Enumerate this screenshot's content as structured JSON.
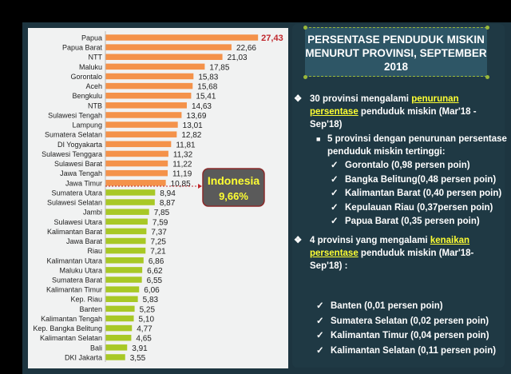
{
  "chart_data": {
    "type": "bar",
    "orientation": "horizontal",
    "categories": [
      "Papua",
      "Papua Barat",
      "NTT",
      "Maluku",
      "Gorontalo",
      "Aceh",
      "Bengkulu",
      "NTB",
      "Sulawesi Tengah",
      "Lampung",
      "Sumatera Selatan",
      "DI Yogyakarta",
      "Sulawesi Tenggara",
      "Sulawesi Barat",
      "Jawa Tengah",
      "Jawa Timur",
      "Sumatera Utara",
      "Sulawesi Selatan",
      "Jambi",
      "Sulawesi Utara",
      "Kalimantan Barat",
      "Jawa Barat",
      "Riau",
      "Kalimantan Utara",
      "Maluku Utara",
      "Sumatera Barat",
      "Kalimantan Timur",
      "Kep. Riau",
      "Banten",
      "Kalimantan Tengah",
      "Kep. Bangka Belitung",
      "Kalimantan Selatan",
      "Bali",
      "DKI Jakarta"
    ],
    "values": [
      27.43,
      22.66,
      21.03,
      17.85,
      15.83,
      15.68,
      15.41,
      14.63,
      13.69,
      13.01,
      12.82,
      11.81,
      11.32,
      11.22,
      11.19,
      10.85,
      8.94,
      8.87,
      7.85,
      7.59,
      7.37,
      7.25,
      7.21,
      6.86,
      6.62,
      6.55,
      6.06,
      5.83,
      5.25,
      5.1,
      4.77,
      4.65,
      3.91,
      3.55
    ],
    "value_labels": [
      "27,43",
      "22,66",
      "21,03",
      "17,85",
      "15,83",
      "15,68",
      "15,41",
      "14,63",
      "13,69",
      "13,01",
      "12,82",
      "11,81",
      "11,32",
      "11,22",
      "11,19",
      "10,85",
      "8,94",
      "8,87",
      "7,85",
      "7,59",
      "7,37",
      "7,25",
      "7,21",
      "6,86",
      "6,62",
      "6,55",
      "6,06",
      "5,83",
      "5,25",
      "5,10",
      "4,77",
      "4,65",
      "3,91",
      "3,55"
    ],
    "reference_line": {
      "value": 9.66,
      "label": "Indonesia",
      "value_label": "9,66%"
    },
    "colors": {
      "above": "#f4924a",
      "below": "#a8c826",
      "reference": "#c0282d",
      "max_label": "#c0282d"
    },
    "grid": false
  },
  "panel": {
    "title": "PERSENTASE PENDUDUK MISKIN MENURUT PROVINSI, SEPTEMBER 2018",
    "b1": {
      "pre": "30 provinsi mengalami ",
      "hl1": "penurunan",
      "hl2": "persentase",
      "post": " penduduk miskin  (Mar'18 -",
      "line3": "Sep'18)"
    },
    "sub1": {
      "l1": "5 provinsi dengan penurunan persentase",
      "l2": "penduduk miskin tertinggi:"
    },
    "down": [
      "Gorontalo (0,98  persen poin)",
      "Bangka Belitung(0,48 persen poin)",
      "Kalimantan Barat (0,40 persen poin)",
      "Kepulauan Riau (0,37persen poin)",
      "Papua Barat (0,35 persen poin)"
    ],
    "b2": {
      "pre": "4 provinsi yang mengalami ",
      "hl1": "kenaikan",
      "hl2": "persentase",
      "post": " penduduk miskin (Mar'18-",
      "line3": "Sep'18) :"
    },
    "up": [
      "Banten (0,01 persen poin)",
      "Sumatera Selatan (0,02 persen poin)",
      "Kalimantan Timur (0,04 persen poin)",
      "Kalimantan Selatan (0,11 persen poin)"
    ],
    "colors": {
      "highlight": "#ffff33",
      "accent": "#9ab83a"
    }
  }
}
